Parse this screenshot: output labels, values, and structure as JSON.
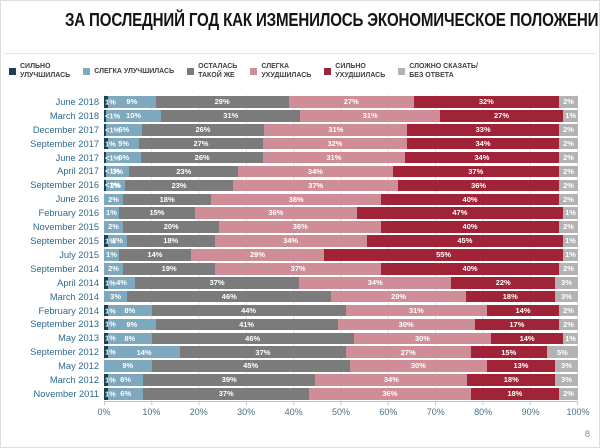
{
  "page_number": "8",
  "axis": {
    "x_ticks": [
      "0%",
      "10%",
      "20%",
      "30%",
      "40%",
      "50%",
      "60%",
      "70%",
      "80%",
      "90%",
      "100%"
    ]
  },
  "legend": {
    "items": [
      {
        "lines": [
          "СИЛЬНО",
          "УЛУЧШИЛАСЬ"
        ],
        "color": "#1a4152"
      },
      {
        "lines": [
          "СЛЕГКА УЛУЧШИЛАСЬ"
        ],
        "color": "#7da8bd"
      },
      {
        "lines": [
          "ОСТАЛАСЬ",
          "ТАКОЙ ЖЕ"
        ],
        "color": "#7b7b7b"
      },
      {
        "lines": [
          "СЛЕГКА",
          "УХУДШИЛАСЬ"
        ],
        "color": "#cf8d97"
      },
      {
        "lines": [
          "СИЛЬНО",
          "УХУДШИЛАСЬ"
        ],
        "color": "#a02337"
      },
      {
        "lines": [
          "СЛОЖНО СКАЗАТЬ/",
          "БЕЗ ОТВЕТА"
        ],
        "color": "#b3b3b3"
      }
    ]
  },
  "chart_data": {
    "type": "bar",
    "stacked": true,
    "orientation": "horizontal",
    "title": "ЗА ПОСЛЕДНИЙ ГОД КАК ИЗМЕНИЛОСЬ ЭКОНОМИЧЕСКОЕ ПОЛОЖЕНИЕ ВАШЕЙ СЕМЬИ?",
    "xlabel": "",
    "ylabel": "",
    "xlim": [
      0,
      100
    ],
    "grid": true,
    "legend_position": "top",
    "categories": [
      "June 2018",
      "March 2018",
      "December 2017",
      "September 2017",
      "June 2017",
      "April 2017",
      "September 2016",
      "June 2016",
      "February 2016",
      "November 2015",
      "September 2015",
      "July 2015",
      "September 2014",
      "April 2014",
      "March 2014",
      "February 2014",
      "September 2013",
      "May 2013",
      "September 2012",
      "May 2012",
      "March 2012",
      "November 2011"
    ],
    "series": [
      {
        "name": "СИЛЬНО УЛУЧШИЛАСЬ",
        "color": "#1a4152",
        "values": [
          1,
          0.5,
          0.5,
          1,
          0.5,
          0.5,
          0.5,
          0,
          0,
          0,
          1,
          0,
          0,
          1,
          0,
          1,
          1,
          1,
          1,
          0,
          1,
          1
        ],
        "labels": [
          "1%",
          "<1%",
          "<1%",
          "1%",
          "<1%",
          "<1%",
          "<1%",
          "",
          "",
          "",
          "1%",
          "",
          "",
          "1%",
          "",
          "1%",
          "1%",
          "1%",
          "1%",
          "",
          "1%",
          "1%"
        ]
      },
      {
        "name": "СЛЕГКА УЛУЧШИЛАСЬ",
        "color": "#7da8bd",
        "values": [
          9,
          10,
          6,
          5,
          6,
          3,
          2,
          2,
          1,
          2,
          2,
          1,
          2,
          4,
          3,
          8,
          9,
          8,
          14,
          9,
          6,
          6
        ],
        "labels": [
          "9%",
          "10%",
          "6%",
          "5%",
          "6%",
          "3%",
          "2%",
          "2%",
          "1%",
          "2%",
          "2%",
          "1%",
          "2%",
          "4%",
          "3%",
          "8%",
          "9%",
          "8%",
          "14%",
          "9%",
          "6%",
          "6%"
        ]
      },
      {
        "name": "ОСТАЛАСЬ ТАКОЙ ЖЕ",
        "color": "#7b7b7b",
        "values": [
          29,
          31,
          26,
          27,
          26,
          23,
          23,
          18,
          15,
          20,
          18,
          14,
          19,
          37,
          46,
          44,
          41,
          46,
          37,
          45,
          39,
          37
        ],
        "labels": [
          "29%",
          "31%",
          "26%",
          "27%",
          "26%",
          "23%",
          "23%",
          "18%",
          "15%",
          "20%",
          "18%",
          "14%",
          "19%",
          "37%",
          "46%",
          "44%",
          "41%",
          "46%",
          "37%",
          "45%",
          "39%",
          "37%"
        ]
      },
      {
        "name": "СЛЕГКА УХУДШИЛАСЬ",
        "color": "#cf8d97",
        "values": [
          27,
          31,
          31,
          32,
          31,
          34,
          37,
          38,
          36,
          36,
          34,
          29,
          37,
          34,
          29,
          31,
          30,
          30,
          27,
          30,
          34,
          36
        ],
        "labels": [
          "27%",
          "31%",
          "31%",
          "32%",
          "31%",
          "34%",
          "37%",
          "38%",
          "36%",
          "36%",
          "34%",
          "29%",
          "37%",
          "34%",
          "29%",
          "31%",
          "30%",
          "30%",
          "27%",
          "30%",
          "34%",
          "36%"
        ]
      },
      {
        "name": "СИЛЬНО УХУДШИЛАСЬ",
        "color": "#a02337",
        "values": [
          32,
          27,
          33,
          34,
          34,
          37,
          36,
          40,
          47,
          40,
          45,
          55,
          40,
          22,
          18,
          14,
          17,
          14,
          15,
          13,
          18,
          18
        ],
        "labels": [
          "32%",
          "27%",
          "33%",
          "34%",
          "34%",
          "37%",
          "36%",
          "40%",
          "47%",
          "40%",
          "45%",
          "55%",
          "40%",
          "22%",
          "18%",
          "14%",
          "17%",
          "14%",
          "15%",
          "13%",
          "18%",
          "18%"
        ]
      },
      {
        "name": "СЛОЖНО СКАЗАТЬ/БЕЗ ОТВЕТА",
        "color": "#b3b3b3",
        "values": [
          2,
          1,
          2,
          2,
          2,
          2,
          2,
          2,
          1,
          2,
          1,
          1,
          2,
          3,
          3,
          2,
          2,
          1,
          5,
          3,
          3,
          2
        ],
        "labels": [
          "2%",
          "1%",
          "2%",
          "2%",
          "2%",
          "2%",
          "2%",
          "2%",
          "1%",
          "2%",
          "1%",
          "1%",
          "2%",
          "3%",
          "3%",
          "2%",
          "2%",
          "1%",
          "5%",
          "3%",
          "3%",
          "2%"
        ]
      }
    ]
  }
}
